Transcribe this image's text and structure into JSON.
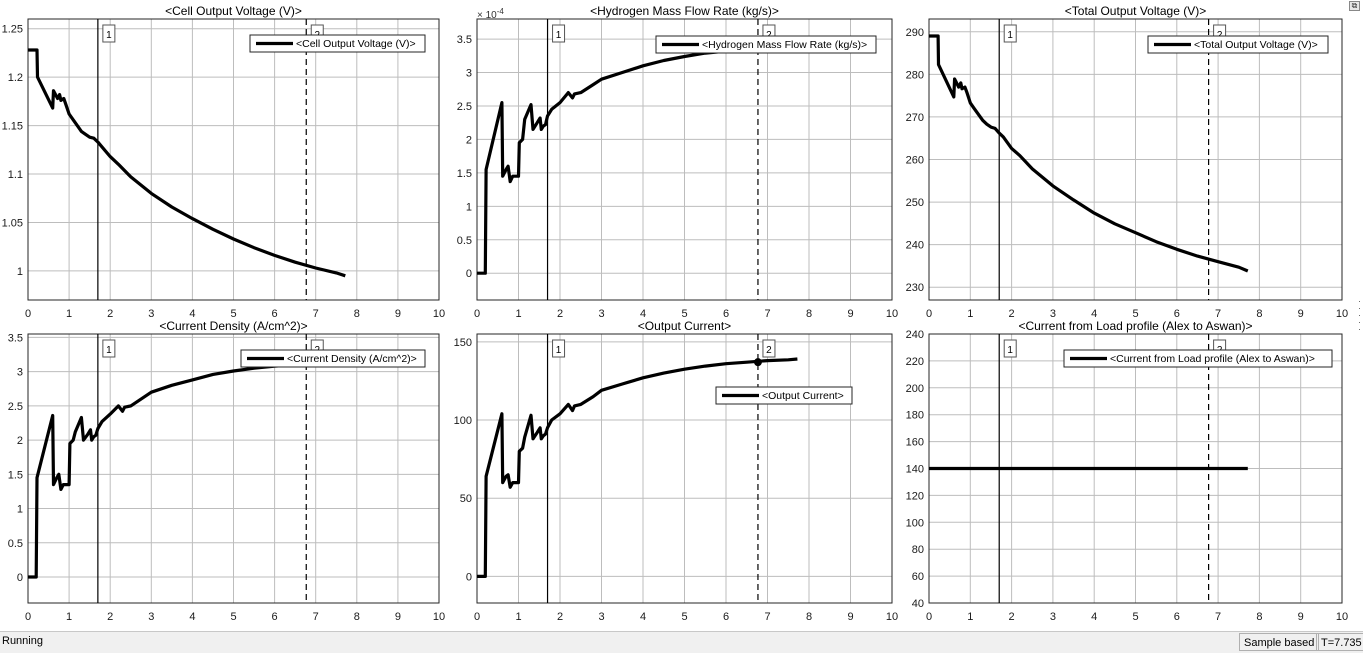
{
  "chart_data": [
    {
      "type": "line",
      "title": "<Cell Output Voltage (V)>",
      "legend": [
        "<Cell Output Voltage (V)>"
      ],
      "legend_position": "top-right",
      "grid": true,
      "xlim": [
        0,
        10
      ],
      "ylim": [
        0.97,
        1.26
      ],
      "xticks": [
        0,
        1,
        2,
        3,
        4,
        5,
        6,
        7,
        8,
        9,
        10
      ],
      "yticks": [
        1,
        1.05,
        1.1,
        1.15,
        1.2,
        1.25
      ],
      "ytick_labels": [
        "1",
        "1.05",
        "1.1",
        "1.15",
        "1.2",
        "1.25"
      ],
      "cursors": [
        {
          "label": "1",
          "x": 1.7,
          "style": "solid"
        },
        {
          "label": "2",
          "x": 6.77,
          "style": "dashed"
        }
      ],
      "series": [
        {
          "x": [
            0,
            0.22,
            0.23,
            0.6,
            0.62,
            0.72,
            0.77,
            0.8,
            0.87,
            0.92,
            1.0,
            1.1,
            1.3,
            1.4,
            1.5,
            1.6,
            1.7,
            1.8,
            2.0,
            2.2,
            2.5,
            3.0,
            3.5,
            4.0,
            4.5,
            5.0,
            5.5,
            6.0,
            6.5,
            7.0,
            7.5,
            7.72
          ],
          "y": [
            1.228,
            1.228,
            1.2,
            1.168,
            1.186,
            1.178,
            1.182,
            1.176,
            1.178,
            1.172,
            1.162,
            1.156,
            1.144,
            1.141,
            1.138,
            1.137,
            1.133,
            1.128,
            1.118,
            1.11,
            1.097,
            1.08,
            1.066,
            1.054,
            1.043,
            1.033,
            1.024,
            1.016,
            1.009,
            1.003,
            0.998,
            0.995
          ]
        }
      ]
    },
    {
      "type": "line",
      "title": "<Hydrogen Mass Flow Rate (kg/s)>",
      "legend": [
        "<Hydrogen Mass Flow Rate (kg/s)>"
      ],
      "legend_position": "top-right",
      "grid": true,
      "y_multiplier": "× 10^-4",
      "xlim": [
        0,
        10
      ],
      "ylim": [
        -0.4,
        3.8
      ],
      "xticks": [
        0,
        1,
        2,
        3,
        4,
        5,
        6,
        7,
        8,
        9,
        10
      ],
      "yticks": [
        0,
        0.5,
        1,
        1.5,
        2,
        2.5,
        3,
        3.5
      ],
      "ytick_labels": [
        "0",
        "0.5",
        "1",
        "1.5",
        "2",
        "2.5",
        "3",
        "3.5"
      ],
      "cursors": [
        {
          "label": "1",
          "x": 1.7,
          "style": "solid"
        },
        {
          "label": "2",
          "x": 6.77,
          "style": "dashed"
        }
      ],
      "series": [
        {
          "x": [
            0,
            0.2,
            0.22,
            0.6,
            0.62,
            0.7,
            0.75,
            0.8,
            0.86,
            1.0,
            1.02,
            1.1,
            1.15,
            1.3,
            1.35,
            1.45,
            1.52,
            1.55,
            1.6,
            1.65,
            1.7,
            1.8,
            2.0,
            2.2,
            2.3,
            2.35,
            2.5,
            2.8,
            3.0,
            3.5,
            4.0,
            4.5,
            5.0,
            5.5,
            6.0,
            6.5,
            6.77
          ],
          "y": [
            0,
            0,
            1.55,
            2.55,
            1.45,
            1.55,
            1.6,
            1.37,
            1.45,
            1.45,
            1.95,
            2.0,
            2.3,
            2.52,
            2.15,
            2.25,
            2.32,
            2.15,
            2.2,
            2.22,
            2.35,
            2.45,
            2.55,
            2.7,
            2.62,
            2.68,
            2.7,
            2.82,
            2.9,
            3.0,
            3.1,
            3.18,
            3.24,
            3.29,
            3.32,
            3.35,
            3.36
          ]
        }
      ]
    },
    {
      "type": "line",
      "title": "<Total Output Voltage (V)>",
      "legend": [
        "<Total Output Voltage (V)>"
      ],
      "legend_position": "top-right",
      "grid": true,
      "xlim": [
        0,
        10
      ],
      "ylim": [
        227,
        293
      ],
      "xticks": [
        0,
        1,
        2,
        3,
        4,
        5,
        6,
        7,
        8,
        9,
        10
      ],
      "yticks": [
        230,
        240,
        250,
        260,
        270,
        280,
        290
      ],
      "ytick_labels": [
        "230",
        "240",
        "250",
        "260",
        "270",
        "280",
        "290"
      ],
      "cursors": [
        {
          "label": "1",
          "x": 1.7,
          "style": "solid"
        },
        {
          "label": "2",
          "x": 6.77,
          "style": "dashed"
        }
      ],
      "series": [
        {
          "x": [
            0,
            0.22,
            0.23,
            0.6,
            0.62,
            0.72,
            0.77,
            0.8,
            0.87,
            0.92,
            1.0,
            1.1,
            1.3,
            1.4,
            1.5,
            1.6,
            1.7,
            1.8,
            2.0,
            2.2,
            2.5,
            3.0,
            3.5,
            4.0,
            4.5,
            5.0,
            5.5,
            6.0,
            6.5,
            7.0,
            7.5,
            7.72
          ],
          "y": [
            289,
            289,
            282.3,
            274.7,
            278.9,
            277.0,
            278.0,
            276.6,
            277.0,
            275.7,
            273.3,
            271.9,
            269.2,
            268.3,
            267.6,
            267.3,
            266.2,
            265.3,
            262.6,
            260.9,
            257.8,
            253.8,
            250.5,
            247.4,
            244.9,
            242.8,
            240.7,
            238.9,
            237.3,
            236.0,
            234.7,
            233.8
          ]
        }
      ]
    },
    {
      "type": "line",
      "title": "<Current Density (A/cm^2)>",
      "legend": [
        "<Current Density (A/cm^2)>"
      ],
      "legend_position": "top-right",
      "grid": true,
      "xlim": [
        0,
        10
      ],
      "ylim": [
        -0.38,
        3.55
      ],
      "xticks": [
        0,
        1,
        2,
        3,
        4,
        5,
        6,
        7,
        8,
        9,
        10
      ],
      "yticks": [
        0,
        0.5,
        1,
        1.5,
        2,
        2.5,
        3,
        3.5
      ],
      "ytick_labels": [
        "0",
        "0.5",
        "1",
        "1.5",
        "2",
        "2.5",
        "3",
        "3.5"
      ],
      "cursors": [
        {
          "label": "1",
          "x": 1.7,
          "style": "solid"
        },
        {
          "label": "2",
          "x": 6.77,
          "style": "dashed"
        }
      ],
      "series": [
        {
          "x": [
            0,
            0.2,
            0.22,
            0.6,
            0.62,
            0.7,
            0.75,
            0.8,
            0.86,
            1.0,
            1.02,
            1.1,
            1.15,
            1.3,
            1.35,
            1.45,
            1.52,
            1.55,
            1.6,
            1.65,
            1.7,
            1.8,
            2.0,
            2.2,
            2.3,
            2.35,
            2.5,
            2.8,
            3.0,
            3.5,
            4.0,
            4.5,
            5.0,
            5.5,
            6.0,
            6.5,
            6.77
          ],
          "y": [
            0,
            0,
            1.45,
            2.36,
            1.35,
            1.45,
            1.5,
            1.28,
            1.35,
            1.35,
            1.95,
            2.0,
            2.12,
            2.33,
            2.0,
            2.08,
            2.15,
            2.0,
            2.05,
            2.07,
            2.17,
            2.27,
            2.38,
            2.5,
            2.42,
            2.48,
            2.5,
            2.62,
            2.7,
            2.8,
            2.88,
            2.96,
            3.01,
            3.05,
            3.08,
            3.1,
            3.12
          ]
        }
      ]
    },
    {
      "type": "line",
      "title": "<Output Current>",
      "legend": [
        "<Output Current>"
      ],
      "legend_position": "middle-right",
      "grid": true,
      "xlim": [
        0,
        10
      ],
      "ylim": [
        -17,
        155
      ],
      "xticks": [
        0,
        1,
        2,
        3,
        4,
        5,
        6,
        7,
        8,
        9,
        10
      ],
      "yticks": [
        0,
        50,
        100,
        150
      ],
      "ytick_labels": [
        "0",
        "50",
        "100",
        "150"
      ],
      "cursors": [
        {
          "label": "1",
          "x": 1.7,
          "style": "solid"
        },
        {
          "label": "2",
          "x": 6.77,
          "style": "dashed",
          "marker_y": 137
        }
      ],
      "series": [
        {
          "x": [
            0,
            0.2,
            0.22,
            0.6,
            0.62,
            0.7,
            0.75,
            0.8,
            0.86,
            1.0,
            1.02,
            1.1,
            1.15,
            1.3,
            1.35,
            1.45,
            1.52,
            1.55,
            1.6,
            1.65,
            1.7,
            1.8,
            2.0,
            2.2,
            2.3,
            2.35,
            2.5,
            2.8,
            3.0,
            3.5,
            4.0,
            4.5,
            5.0,
            5.5,
            6.0,
            6.5,
            7.0,
            7.5,
            7.72
          ],
          "y": [
            0,
            0,
            64,
            104,
            60,
            64,
            65,
            57,
            60,
            60,
            80,
            82,
            89,
            103,
            88,
            92,
            95,
            88,
            90,
            91,
            95,
            100,
            104,
            110,
            106,
            109,
            110,
            115,
            119,
            123,
            127,
            130,
            132.5,
            134.5,
            136,
            137,
            138,
            138.5,
            139
          ]
        }
      ]
    },
    {
      "type": "line",
      "title": "<Current from Load profile (Alex to Aswan)>",
      "legend": [
        "<Current from Load profile (Alex to Aswan)>"
      ],
      "legend_position": "top-right",
      "grid": true,
      "xlim": [
        0,
        10
      ],
      "ylim": [
        40,
        240
      ],
      "xticks": [
        0,
        1,
        2,
        3,
        4,
        5,
        6,
        7,
        8,
        9,
        10
      ],
      "yticks": [
        40,
        60,
        80,
        100,
        120,
        140,
        160,
        180,
        200,
        220,
        240
      ],
      "ytick_labels": [
        "40",
        "60",
        "80",
        "100",
        "120",
        "140",
        "160",
        "180",
        "200",
        "220",
        "240"
      ],
      "cursors": [
        {
          "label": "1",
          "x": 1.7,
          "style": "solid"
        },
        {
          "label": "2",
          "x": 6.77,
          "style": "dashed"
        }
      ],
      "series": [
        {
          "x": [
            0,
            7.72
          ],
          "y": [
            140,
            140
          ]
        }
      ]
    }
  ],
  "status": {
    "state": "Running",
    "mode": "Sample based",
    "time": "T=7.735"
  }
}
